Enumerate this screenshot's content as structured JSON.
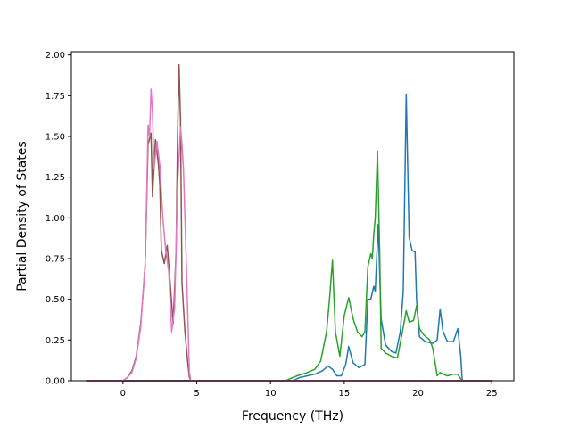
{
  "chart_data": {
    "type": "line",
    "title": "",
    "xlabel": "Frequency (THz)",
    "ylabel": "Partial Density of States",
    "xlim": [
      -3.5,
      26.5
    ],
    "ylim": [
      0,
      2.02
    ],
    "xticks": [
      0,
      5,
      10,
      15,
      20,
      25
    ],
    "xtick_labels": [
      "0",
      "5",
      "10",
      "15",
      "20",
      "25"
    ],
    "yticks": [
      0,
      0.25,
      0.5,
      0.75,
      1.0,
      1.25,
      1.5,
      1.75,
      2.0
    ],
    "ytick_labels": [
      "0.00",
      "0.25",
      "0.50",
      "0.75",
      "1.00",
      "1.25",
      "1.50",
      "1.75",
      "2.00"
    ],
    "grid": false,
    "legend": "none",
    "series": [
      {
        "color": "#1f77b4",
        "points": [
          [
            -2.5,
            0
          ],
          [
            11.5,
            0
          ],
          [
            12,
            0.02
          ],
          [
            13,
            0.04
          ],
          [
            13.5,
            0.06
          ],
          [
            13.9,
            0.09
          ],
          [
            14.2,
            0.07
          ],
          [
            14.5,
            0.03
          ],
          [
            14.8,
            0.03
          ],
          [
            15.1,
            0.1
          ],
          [
            15.3,
            0.21
          ],
          [
            15.6,
            0.11
          ],
          [
            16.0,
            0.08
          ],
          [
            16.4,
            0.1
          ],
          [
            16.6,
            0.5
          ],
          [
            16.8,
            0.5
          ],
          [
            17.0,
            0.58
          ],
          [
            17.1,
            0.55
          ],
          [
            17.3,
            0.96
          ],
          [
            17.5,
            0.38
          ],
          [
            17.8,
            0.22
          ],
          [
            18.2,
            0.18
          ],
          [
            18.5,
            0.17
          ],
          [
            18.8,
            0.3
          ],
          [
            19.0,
            0.55
          ],
          [
            19.2,
            1.76
          ],
          [
            19.4,
            0.88
          ],
          [
            19.6,
            0.8
          ],
          [
            19.8,
            0.79
          ],
          [
            19.9,
            0.5
          ],
          [
            20.1,
            0.27
          ],
          [
            20.5,
            0.24
          ],
          [
            21.0,
            0.23
          ],
          [
            21.3,
            0.25
          ],
          [
            21.5,
            0.44
          ],
          [
            21.7,
            0.3
          ],
          [
            22.0,
            0.24
          ],
          [
            22.4,
            0.24
          ],
          [
            22.7,
            0.32
          ],
          [
            22.9,
            0.15
          ],
          [
            23.0,
            0
          ],
          [
            25,
            0
          ]
        ]
      },
      {
        "color": "#2ca02c",
        "points": [
          [
            -2.5,
            0
          ],
          [
            11.0,
            0
          ],
          [
            11.8,
            0.03
          ],
          [
            12.5,
            0.05
          ],
          [
            13.0,
            0.07
          ],
          [
            13.4,
            0.12
          ],
          [
            13.8,
            0.3
          ],
          [
            14.0,
            0.5
          ],
          [
            14.2,
            0.74
          ],
          [
            14.4,
            0.3
          ],
          [
            14.7,
            0.15
          ],
          [
            15.0,
            0.4
          ],
          [
            15.3,
            0.51
          ],
          [
            15.6,
            0.38
          ],
          [
            15.9,
            0.3
          ],
          [
            16.2,
            0.27
          ],
          [
            16.4,
            0.3
          ],
          [
            16.6,
            0.7
          ],
          [
            16.8,
            0.78
          ],
          [
            16.9,
            0.75
          ],
          [
            17.0,
            0.9
          ],
          [
            17.1,
            1.0
          ],
          [
            17.25,
            1.41
          ],
          [
            17.4,
            0.8
          ],
          [
            17.5,
            0.2
          ],
          [
            17.8,
            0.17
          ],
          [
            18.2,
            0.15
          ],
          [
            18.6,
            0.14
          ],
          [
            18.9,
            0.28
          ],
          [
            19.2,
            0.43
          ],
          [
            19.4,
            0.36
          ],
          [
            19.7,
            0.37
          ],
          [
            19.9,
            0.46
          ],
          [
            20.1,
            0.32
          ],
          [
            20.4,
            0.28
          ],
          [
            20.8,
            0.25
          ],
          [
            21.0,
            0.2
          ],
          [
            21.3,
            0.03
          ],
          [
            21.5,
            0.05
          ],
          [
            21.7,
            0.04
          ],
          [
            22.0,
            0.03
          ],
          [
            22.4,
            0.04
          ],
          [
            22.7,
            0.04
          ],
          [
            22.9,
            0.01
          ],
          [
            23.0,
            0
          ],
          [
            25,
            0
          ]
        ]
      },
      {
        "color": "#d62728",
        "points": [
          [
            -2.5,
            0
          ],
          [
            25,
            0
          ]
        ]
      },
      {
        "color": "#9467bd",
        "points": [
          [
            -2.5,
            0
          ],
          [
            25,
            0
          ]
        ]
      },
      {
        "color": "#8c564b",
        "points": [
          [
            -2.5,
            0
          ],
          [
            0,
            0
          ],
          [
            0.3,
            0.02
          ],
          [
            0.6,
            0.06
          ],
          [
            0.9,
            0.15
          ],
          [
            1.2,
            0.35
          ],
          [
            1.5,
            0.7
          ],
          [
            1.7,
            1.45
          ],
          [
            1.9,
            1.52
          ],
          [
            2.0,
            1.13
          ],
          [
            2.2,
            1.48
          ],
          [
            2.4,
            1.33
          ],
          [
            2.5,
            1.2
          ],
          [
            2.6,
            0.8
          ],
          [
            2.8,
            0.72
          ],
          [
            3.0,
            0.83
          ],
          [
            3.2,
            0.6
          ],
          [
            3.4,
            0.35
          ],
          [
            3.6,
            0.8
          ],
          [
            3.7,
            1.5
          ],
          [
            3.8,
            1.94
          ],
          [
            3.9,
            1.6
          ],
          [
            4.0,
            0.6
          ],
          [
            4.2,
            0.3
          ],
          [
            4.4,
            0.1
          ],
          [
            4.5,
            0.02
          ],
          [
            4.6,
            0
          ],
          [
            25,
            0
          ]
        ]
      },
      {
        "color": "#e377c2",
        "points": [
          [
            -2.5,
            0
          ],
          [
            0,
            0
          ],
          [
            0.3,
            0.02
          ],
          [
            0.6,
            0.05
          ],
          [
            0.9,
            0.14
          ],
          [
            1.2,
            0.33
          ],
          [
            1.5,
            0.72
          ],
          [
            1.6,
            1.1
          ],
          [
            1.7,
            1.57
          ],
          [
            1.8,
            1.5
          ],
          [
            1.9,
            1.79
          ],
          [
            2.0,
            1.65
          ],
          [
            2.1,
            1.3
          ],
          [
            2.3,
            1.47
          ],
          [
            2.5,
            1.32
          ],
          [
            2.7,
            1.0
          ],
          [
            2.9,
            0.8
          ],
          [
            3.1,
            0.67
          ],
          [
            3.3,
            0.3
          ],
          [
            3.5,
            0.45
          ],
          [
            3.7,
            1.2
          ],
          [
            3.9,
            1.56
          ],
          [
            4.0,
            1.45
          ],
          [
            4.1,
            1.3
          ],
          [
            4.3,
            0.7
          ],
          [
            4.5,
            0.05
          ],
          [
            4.6,
            0
          ],
          [
            25,
            0
          ]
        ]
      }
    ]
  }
}
